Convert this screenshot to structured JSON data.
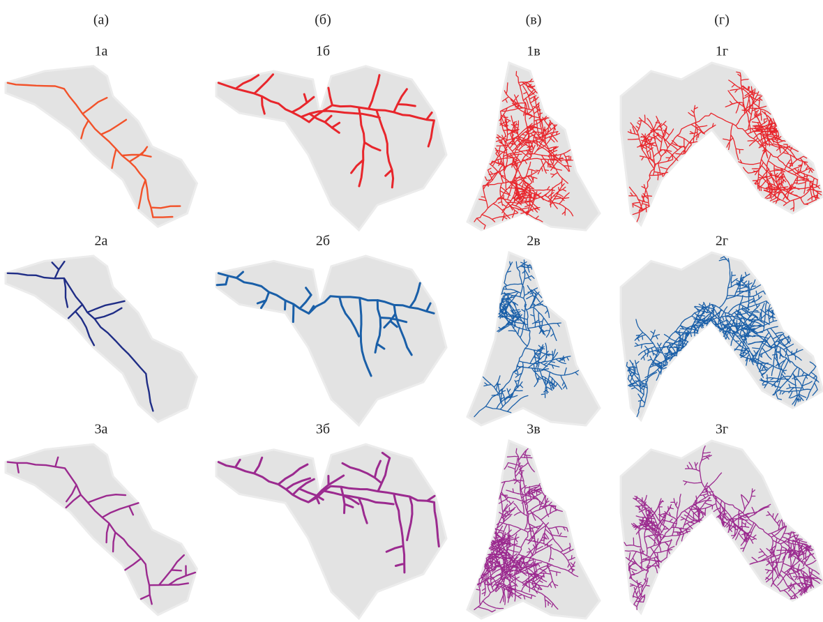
{
  "columns": [
    "(а)",
    "(б)",
    "(в)",
    "(г)"
  ],
  "panels": [
    [
      "1а",
      "1б",
      "1в",
      "1г"
    ],
    [
      "2а",
      "2б",
      "2в",
      "2г"
    ],
    [
      "3а",
      "3б",
      "3в",
      "3г"
    ]
  ]
}
